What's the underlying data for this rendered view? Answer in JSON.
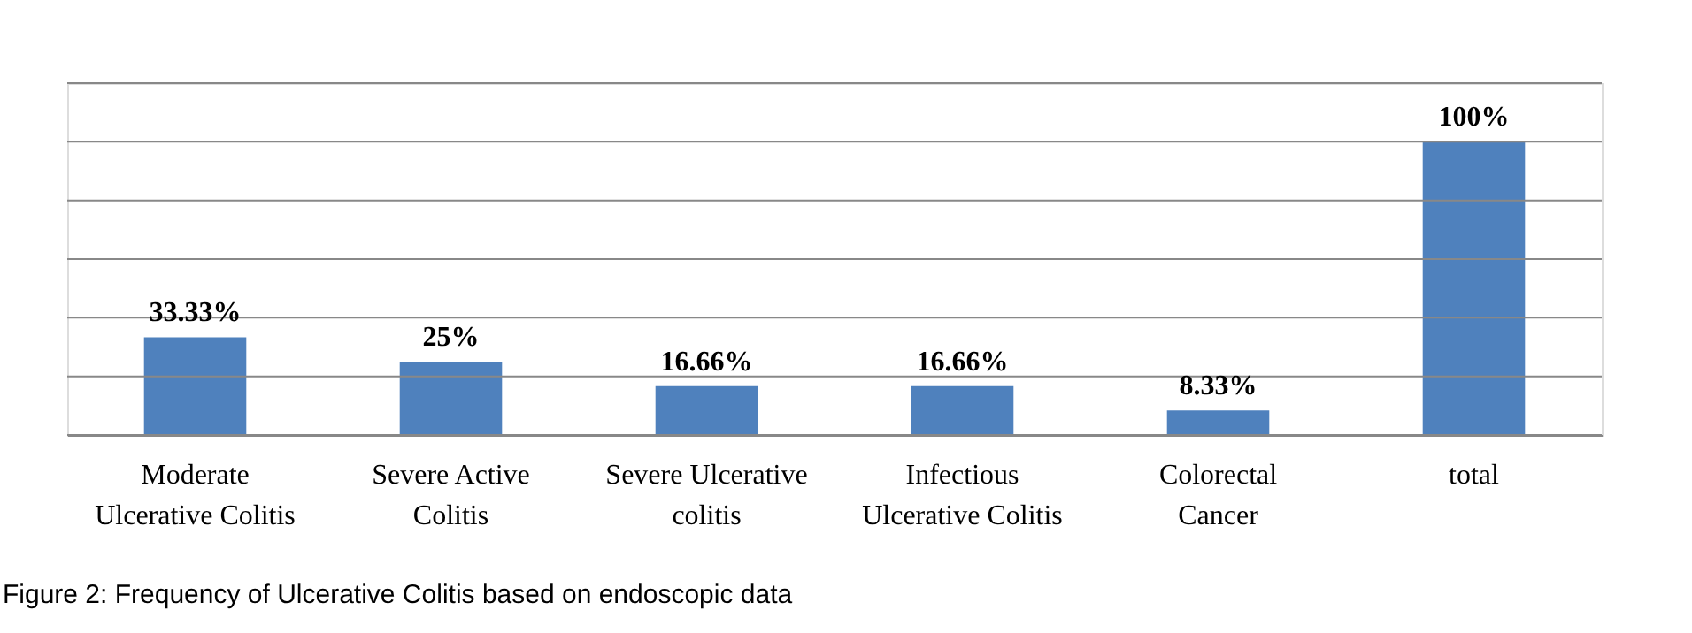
{
  "chart_data": {
    "type": "bar",
    "categories": [
      "Moderate\nUlcerative Colitis",
      "Severe Active\nColitis",
      "Severe Ulcerative\ncolitis",
      "Infectious\nUlcerative Colitis",
      "Colorectal\nCancer",
      "total"
    ],
    "values": [
      33.33,
      25,
      16.66,
      16.66,
      8.33,
      100
    ],
    "value_labels": [
      "33.33%",
      "25%",
      "16.66%",
      "16.66%",
      "8.33%",
      "100%"
    ],
    "color": "#4f81bd",
    "ylim": [
      0,
      120
    ],
    "yticks": [
      {
        "value": 0,
        "label": null
      },
      {
        "value": 20,
        "label": null
      },
      {
        "value": 40,
        "label": null
      },
      {
        "value": 60,
        "label": null
      },
      {
        "value": 80,
        "label": null
      },
      {
        "value": 100,
        "label": null
      },
      {
        "value": 120,
        "label": null
      }
    ],
    "grid": "y",
    "tick_labels": "x",
    "annotations": [
      "Figure 2:  Frequency of Ulcerative Colitis based on endoscopic data"
    ]
  }
}
